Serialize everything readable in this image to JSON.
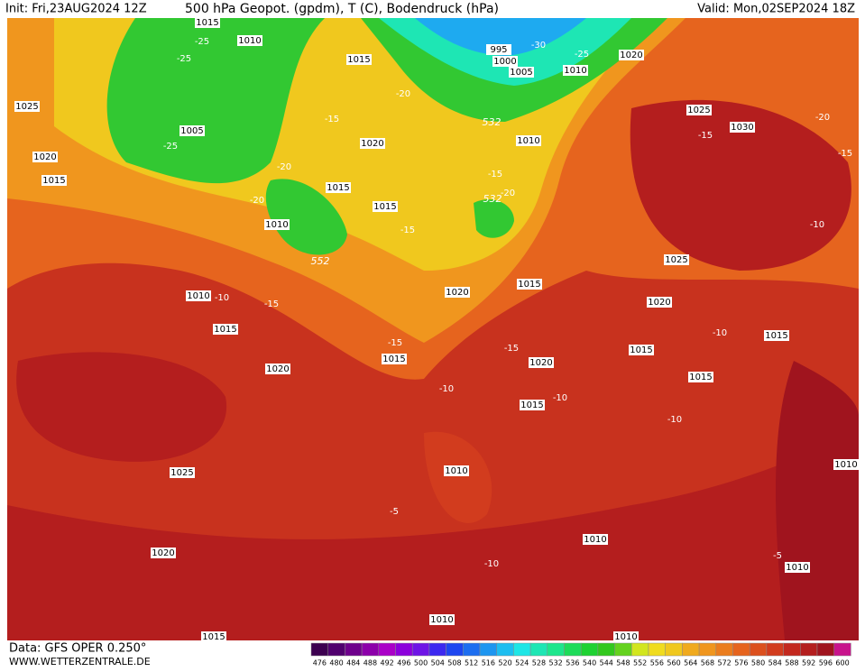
{
  "header": {
    "init": "Init: Fri,23AUG2024 12Z",
    "title": "500 hPa Geopot. (gpdm), T (C), Bodendruck (hPa)",
    "valid": "Valid: Mon,02SEP2024 18Z"
  },
  "footer": {
    "data": "Data: GFS OPER 0.250°",
    "site": "WWW.WETTERZENTRALE.DE"
  },
  "isobar_labels": [
    "1015",
    "1010",
    "1015",
    "995",
    "1000",
    "1005",
    "1010",
    "1020",
    "1025",
    "1005",
    "1020",
    "1015",
    "1020",
    "1010",
    "1025",
    "1030",
    "1015",
    "1015",
    "1010",
    "1025",
    "1020",
    "1015",
    "1010",
    "1015",
    "1020",
    "1015",
    "1015",
    "1015",
    "1020",
    "1020",
    "1015",
    "1015",
    "1025",
    "1010",
    "1010",
    "1020",
    "1010",
    "1010",
    "1010",
    "1015",
    "1010"
  ],
  "temp_labels": [
    "-25",
    "-25",
    "-30",
    "-25",
    "-20",
    "-15",
    "-25",
    "-20",
    "-20",
    "-15",
    "-20",
    "-15",
    "-20",
    "-15",
    "-15",
    "-10",
    "-10",
    "-15",
    "-10",
    "-15",
    "-15",
    "-10",
    "-10",
    "-10",
    "-5",
    "-10",
    "-5"
  ],
  "height_labels": [
    "532",
    "552",
    "532"
  ],
  "colorbar": {
    "values": [
      476,
      480,
      484,
      488,
      492,
      496,
      500,
      504,
      508,
      512,
      516,
      520,
      524,
      528,
      532,
      536,
      540,
      544,
      548,
      552,
      556,
      560,
      564,
      568,
      572,
      576,
      580,
      584,
      588,
      592,
      596,
      600
    ],
    "colors": [
      "#3c0050",
      "#50006e",
      "#6e008c",
      "#8c00aa",
      "#aa00c8",
      "#8c00dc",
      "#6e14e6",
      "#3c28f0",
      "#1e46f0",
      "#1e6ef0",
      "#1e96f0",
      "#1ebef0",
      "#1ee6e6",
      "#1ee6b4",
      "#1ee68c",
      "#1edc5a",
      "#1ed232",
      "#32c81e",
      "#64d21e",
      "#d2e61e",
      "#f0dc1e",
      "#f0c81e",
      "#f0aa1e",
      "#f0961e",
      "#eb7d1e",
      "#e6641e",
      "#dc501e",
      "#d23c1e",
      "#c3281e",
      "#b41e1e",
      "#a0141e",
      "#c8148c"
    ]
  }
}
